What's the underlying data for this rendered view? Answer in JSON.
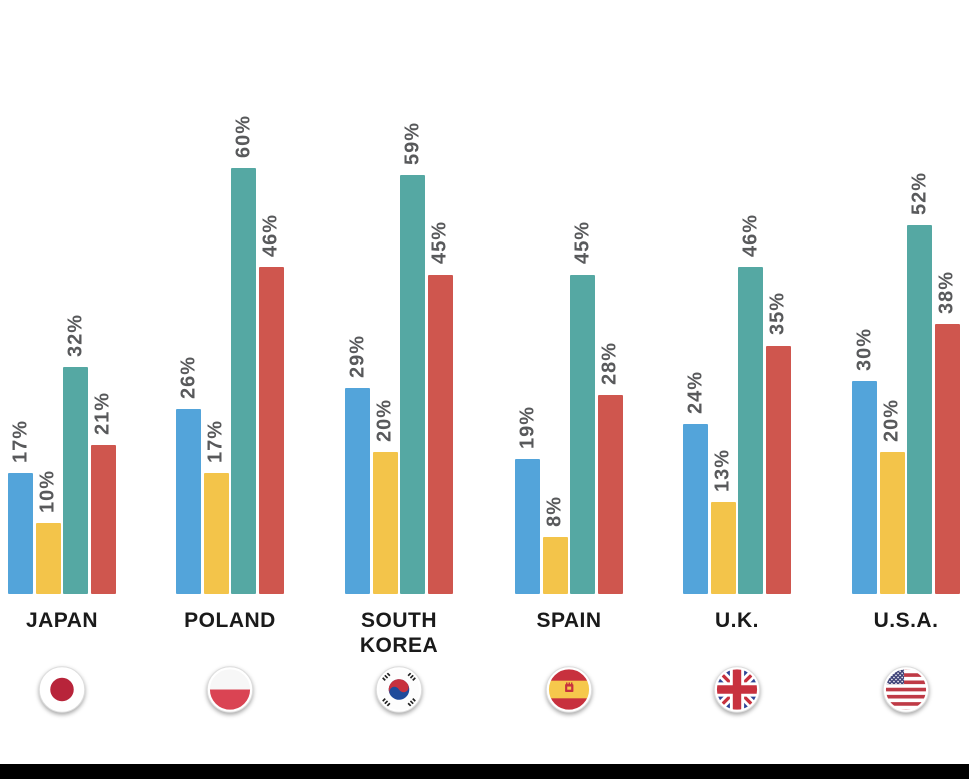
{
  "page": {
    "background": "#ffffff",
    "footer_bar_color": "#000000"
  },
  "chart_data": {
    "type": "bar",
    "title": "",
    "categories": [
      "JAPAN",
      "POLAND",
      "SOUTH KOREA",
      "SPAIN",
      "U.K.",
      "U.S.A."
    ],
    "series": [
      {
        "name": "blue-series",
        "color": "#53a4da",
        "values": [
          17,
          26,
          29,
          19,
          24,
          30
        ]
      },
      {
        "name": "yellow-series",
        "color": "#f3c44a",
        "values": [
          10,
          17,
          20,
          8,
          13,
          20
        ]
      },
      {
        "name": "teal-series",
        "color": "#55a8a3",
        "values": [
          32,
          60,
          59,
          45,
          46,
          52
        ]
      },
      {
        "name": "red-series",
        "color": "#cf564e",
        "values": [
          21,
          46,
          45,
          28,
          35,
          38
        ]
      }
    ],
    "value_suffix": "%",
    "value_label_color": "#58595b",
    "category_label_color": "#1a1a1a",
    "ylim": [
      0,
      60
    ],
    "grid": false,
    "legend": "none",
    "axes": "hidden",
    "bar_label_rotation": "vertical-bottom-to-top",
    "flags": [
      "japan-flag",
      "poland-flag",
      "south-korea-flag",
      "spain-flag",
      "uk-flag",
      "usa-flag"
    ]
  }
}
